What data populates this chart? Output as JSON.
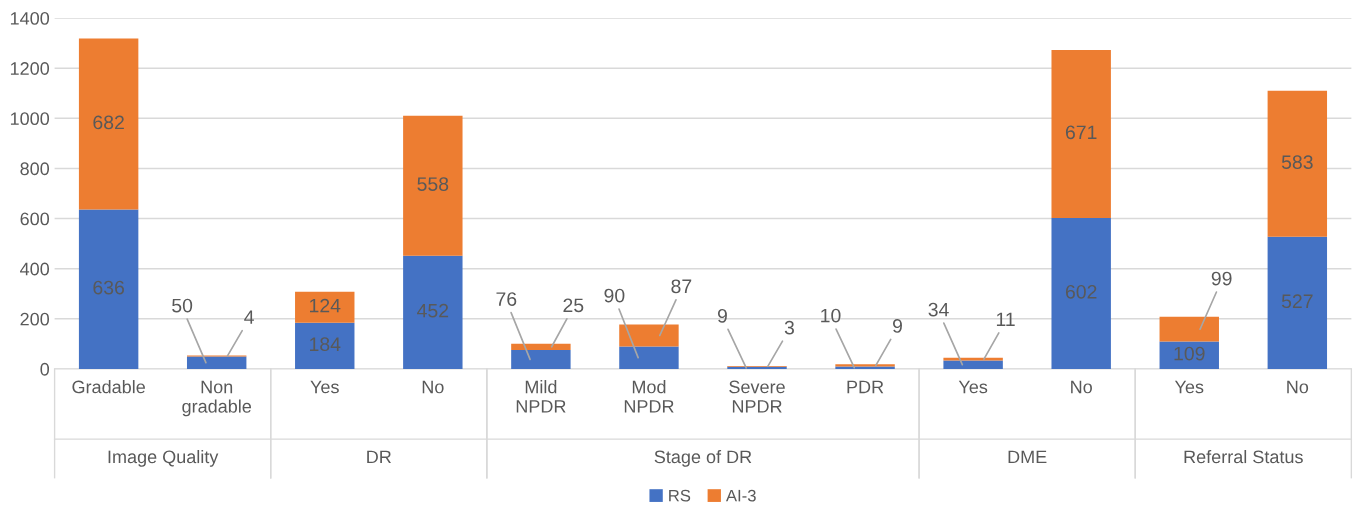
{
  "chart_data": {
    "type": "bar",
    "stacked": true,
    "categories": [
      "Gradable",
      "Non\ngradable",
      "Yes",
      "No",
      "Mild\nNPDR",
      "Mod\nNPDR",
      "Severe\nNPDR",
      "PDR",
      "Yes",
      "No",
      "Yes",
      "No"
    ],
    "series": [
      {
        "name": "RS",
        "color": "#4472c4",
        "values": [
          636,
          50,
          184,
          452,
          76,
          90,
          9,
          10,
          34,
          602,
          109,
          527
        ]
      },
      {
        "name": "AI-3",
        "color": "#ed7d31",
        "values": [
          682,
          4,
          124,
          558,
          25,
          87,
          3,
          9,
          11,
          671,
          99,
          583
        ]
      }
    ],
    "annotations": [
      "Image Quality",
      "DR",
      "Stage of DR",
      "DME",
      "Referral Status"
    ],
    "ylim": [
      0,
      1400
    ],
    "yticks": [
      0,
      200,
      400,
      600,
      800,
      1000,
      1200,
      1400
    ],
    "grid": "y",
    "legend": "bottom",
    "data_labels": true
  }
}
